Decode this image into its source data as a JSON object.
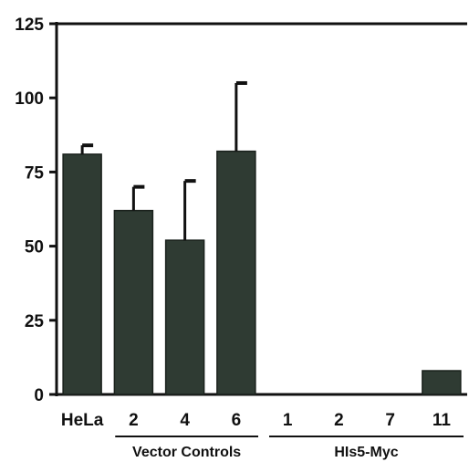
{
  "chart_data": {
    "type": "bar",
    "title": "",
    "xlabel": "",
    "ylabel": "",
    "ylim": [
      0,
      125
    ],
    "yticks": [
      0,
      25,
      50,
      75,
      100,
      125
    ],
    "categories": [
      "HeLa",
      "2",
      "4",
      "6",
      "1",
      "2",
      "7",
      "11"
    ],
    "values": [
      81,
      62,
      52,
      82,
      0,
      0,
      0,
      8
    ],
    "error_plus": [
      3,
      8,
      20,
      23,
      0,
      0,
      0,
      0
    ],
    "groups": [
      {
        "label": "Vector Controls",
        "from": 1,
        "to": 3
      },
      {
        "label": "HIs5-Myc",
        "from": 4,
        "to": 7
      }
    ],
    "bar_color": "#2f3b33",
    "grid": false,
    "legend": "none"
  }
}
